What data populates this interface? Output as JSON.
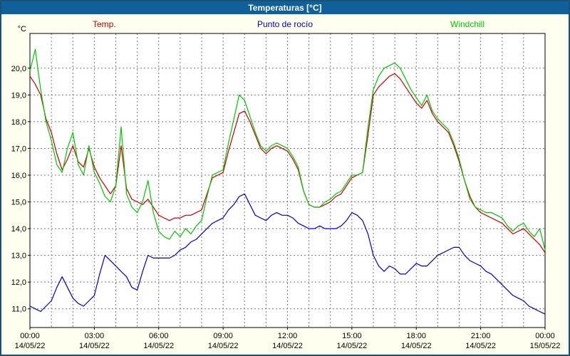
{
  "title": "Temperaturas [°C]",
  "colors": {
    "window_border": "#1a5276",
    "title_bar": "#10609a",
    "title_text": "#ffffff",
    "background": "#fffff0",
    "plot_bg": "#ffffff",
    "grid": "#777777",
    "axis_text": "#000000"
  },
  "chart_data": {
    "type": "line",
    "title": "Temperaturas [°C]",
    "y_unit": "°C",
    "grid": "dashed",
    "legend_position": "top",
    "xlim": [
      0,
      24
    ],
    "ylim": [
      10.3,
      21.3
    ],
    "x_minor_step": 1,
    "y_ticks": [
      {
        "value": 11,
        "label": "11,0"
      },
      {
        "value": 12,
        "label": "12,0"
      },
      {
        "value": 13,
        "label": "13,0"
      },
      {
        "value": 14,
        "label": "14,0"
      },
      {
        "value": 15,
        "label": "15,0"
      },
      {
        "value": 16,
        "label": "16,0"
      },
      {
        "value": 17,
        "label": "17,0"
      },
      {
        "value": 18,
        "label": "18,0"
      },
      {
        "value": 19,
        "label": "19,0"
      },
      {
        "value": 20,
        "label": "20,0"
      }
    ],
    "x_ticks": [
      {
        "hour": 0,
        "time": "00:00",
        "date": "14/05/22"
      },
      {
        "hour": 3,
        "time": "03:00",
        "date": "14/05/22"
      },
      {
        "hour": 6,
        "time": "06:00",
        "date": "14/05/22"
      },
      {
        "hour": 9,
        "time": "09:00",
        "date": "14/05/22"
      },
      {
        "hour": 12,
        "time": "12:00",
        "date": "14/05/22"
      },
      {
        "hour": 15,
        "time": "15:00",
        "date": "14/05/22"
      },
      {
        "hour": 18,
        "time": "18:00",
        "date": "14/05/22"
      },
      {
        "hour": 21,
        "time": "21:00",
        "date": "14/05/22"
      },
      {
        "hour": 24,
        "time": "00:00",
        "date": "15/05/22"
      }
    ],
    "series": [
      {
        "name": "Temp.",
        "color": "#cc0000",
        "points": [
          [
            0,
            19.7
          ],
          [
            0.25,
            19.4
          ],
          [
            0.5,
            19.0
          ],
          [
            0.75,
            18.1
          ],
          [
            1,
            17.6
          ],
          [
            1.25,
            16.8
          ],
          [
            1.5,
            16.2
          ],
          [
            1.75,
            16.6
          ],
          [
            2,
            17.1
          ],
          [
            2.25,
            16.5
          ],
          [
            2.5,
            16.3
          ],
          [
            2.75,
            17.0
          ],
          [
            3,
            16.3
          ],
          [
            3.25,
            15.9
          ],
          [
            3.5,
            15.6
          ],
          [
            3.75,
            15.3
          ],
          [
            4,
            15.6
          ],
          [
            4.25,
            17.1
          ],
          [
            4.5,
            15.5
          ],
          [
            4.75,
            15.1
          ],
          [
            5,
            15.0
          ],
          [
            5.25,
            14.9
          ],
          [
            5.5,
            15.1
          ],
          [
            5.75,
            14.8
          ],
          [
            6,
            14.5
          ],
          [
            6.25,
            14.4
          ],
          [
            6.5,
            14.3
          ],
          [
            6.75,
            14.4
          ],
          [
            7,
            14.4
          ],
          [
            7.25,
            14.5
          ],
          [
            7.5,
            14.5
          ],
          [
            7.75,
            14.6
          ],
          [
            8,
            14.7
          ],
          [
            8.25,
            15.3
          ],
          [
            8.5,
            15.9
          ],
          [
            8.75,
            16.0
          ],
          [
            9,
            16.1
          ],
          [
            9.25,
            16.9
          ],
          [
            9.5,
            17.6
          ],
          [
            9.75,
            18.3
          ],
          [
            10,
            18.4
          ],
          [
            10.25,
            18.0
          ],
          [
            10.5,
            17.5
          ],
          [
            10.75,
            17.0
          ],
          [
            11,
            16.8
          ],
          [
            11.25,
            17.0
          ],
          [
            11.5,
            17.1
          ],
          [
            11.75,
            17.0
          ],
          [
            12,
            16.9
          ],
          [
            12.25,
            16.6
          ],
          [
            12.5,
            16.2
          ],
          [
            12.75,
            15.4
          ],
          [
            13,
            14.9
          ],
          [
            13.25,
            14.8
          ],
          [
            13.5,
            14.8
          ],
          [
            13.75,
            14.9
          ],
          [
            14,
            15.0
          ],
          [
            14.25,
            15.2
          ],
          [
            14.5,
            15.3
          ],
          [
            14.75,
            15.6
          ],
          [
            15,
            15.9
          ],
          [
            15.25,
            16.0
          ],
          [
            15.5,
            16.1
          ],
          [
            15.75,
            17.5
          ],
          [
            16,
            19.0
          ],
          [
            16.25,
            19.3
          ],
          [
            16.5,
            19.5
          ],
          [
            16.75,
            19.7
          ],
          [
            17,
            19.8
          ],
          [
            17.25,
            19.6
          ],
          [
            17.5,
            19.3
          ],
          [
            17.75,
            19.0
          ],
          [
            18,
            18.7
          ],
          [
            18.25,
            18.5
          ],
          [
            18.5,
            18.8
          ],
          [
            18.75,
            18.3
          ],
          [
            19,
            18.0
          ],
          [
            19.25,
            17.8
          ],
          [
            19.5,
            17.6
          ],
          [
            19.75,
            17.1
          ],
          [
            20,
            16.5
          ],
          [
            20.25,
            15.8
          ],
          [
            20.5,
            15.2
          ],
          [
            20.75,
            14.8
          ],
          [
            21,
            14.6
          ],
          [
            21.25,
            14.5
          ],
          [
            21.5,
            14.4
          ],
          [
            21.75,
            14.3
          ],
          [
            22,
            14.2
          ],
          [
            22.25,
            14.0
          ],
          [
            22.5,
            13.8
          ],
          [
            22.75,
            13.9
          ],
          [
            23,
            14.0
          ],
          [
            23.25,
            13.8
          ],
          [
            23.5,
            13.6
          ],
          [
            23.75,
            13.4
          ],
          [
            24,
            13.1
          ]
        ]
      },
      {
        "name": "Punto de rocío",
        "color": "#0000c8",
        "points": [
          [
            0,
            11.1
          ],
          [
            0.25,
            11.0
          ],
          [
            0.5,
            10.9
          ],
          [
            0.75,
            11.1
          ],
          [
            1,
            11.3
          ],
          [
            1.25,
            11.8
          ],
          [
            1.5,
            12.2
          ],
          [
            1.75,
            11.8
          ],
          [
            2,
            11.4
          ],
          [
            2.25,
            11.2
          ],
          [
            2.5,
            11.1
          ],
          [
            2.75,
            11.3
          ],
          [
            3,
            11.5
          ],
          [
            3.25,
            12.3
          ],
          [
            3.5,
            13.0
          ],
          [
            3.75,
            12.8
          ],
          [
            4,
            12.6
          ],
          [
            4.25,
            12.4
          ],
          [
            4.5,
            12.2
          ],
          [
            4.75,
            11.8
          ],
          [
            5,
            11.7
          ],
          [
            5.25,
            12.4
          ],
          [
            5.5,
            13.0
          ],
          [
            5.75,
            12.9
          ],
          [
            6,
            12.9
          ],
          [
            6.25,
            12.9
          ],
          [
            6.5,
            12.9
          ],
          [
            6.75,
            13.0
          ],
          [
            7,
            13.2
          ],
          [
            7.25,
            13.3
          ],
          [
            7.5,
            13.5
          ],
          [
            7.75,
            13.6
          ],
          [
            8,
            13.8
          ],
          [
            8.25,
            14.0
          ],
          [
            8.5,
            14.2
          ],
          [
            8.75,
            14.3
          ],
          [
            9,
            14.4
          ],
          [
            9.25,
            14.7
          ],
          [
            9.5,
            14.9
          ],
          [
            9.75,
            15.2
          ],
          [
            10,
            15.3
          ],
          [
            10.25,
            14.9
          ],
          [
            10.5,
            14.5
          ],
          [
            10.75,
            14.4
          ],
          [
            11,
            14.3
          ],
          [
            11.25,
            14.5
          ],
          [
            11.5,
            14.6
          ],
          [
            11.75,
            14.5
          ],
          [
            12,
            14.5
          ],
          [
            12.25,
            14.4
          ],
          [
            12.5,
            14.2
          ],
          [
            12.75,
            14.1
          ],
          [
            13,
            14.0
          ],
          [
            13.25,
            14.0
          ],
          [
            13.5,
            14.1
          ],
          [
            13.75,
            14.0
          ],
          [
            14,
            14.0
          ],
          [
            14.25,
            14.0
          ],
          [
            14.5,
            14.1
          ],
          [
            14.75,
            14.3
          ],
          [
            15,
            14.6
          ],
          [
            15.25,
            14.5
          ],
          [
            15.5,
            14.3
          ],
          [
            15.75,
            13.8
          ],
          [
            16,
            13.0
          ],
          [
            16.25,
            12.6
          ],
          [
            16.5,
            12.4
          ],
          [
            16.75,
            12.6
          ],
          [
            17,
            12.5
          ],
          [
            17.25,
            12.3
          ],
          [
            17.5,
            12.3
          ],
          [
            17.75,
            12.5
          ],
          [
            18,
            12.7
          ],
          [
            18.25,
            12.6
          ],
          [
            18.5,
            12.6
          ],
          [
            18.75,
            12.8
          ],
          [
            19,
            13.0
          ],
          [
            19.25,
            13.1
          ],
          [
            19.5,
            13.2
          ],
          [
            19.75,
            13.3
          ],
          [
            20,
            13.3
          ],
          [
            20.25,
            13.0
          ],
          [
            20.5,
            12.8
          ],
          [
            20.75,
            12.7
          ],
          [
            21,
            12.6
          ],
          [
            21.25,
            12.4
          ],
          [
            21.5,
            12.3
          ],
          [
            21.75,
            12.1
          ],
          [
            22,
            11.9
          ],
          [
            22.25,
            11.7
          ],
          [
            22.5,
            11.5
          ],
          [
            22.75,
            11.4
          ],
          [
            23,
            11.3
          ],
          [
            23.25,
            11.1
          ],
          [
            23.5,
            11.0
          ],
          [
            23.75,
            10.9
          ],
          [
            24,
            10.8
          ]
        ]
      },
      {
        "name": "Windchill",
        "color": "#00c800",
        "points": [
          [
            0,
            19.9
          ],
          [
            0.25,
            20.7
          ],
          [
            0.5,
            19.2
          ],
          [
            0.75,
            18.0
          ],
          [
            1,
            17.3
          ],
          [
            1.25,
            16.4
          ],
          [
            1.5,
            16.1
          ],
          [
            1.75,
            17.0
          ],
          [
            2,
            17.6
          ],
          [
            2.25,
            16.4
          ],
          [
            2.5,
            16.0
          ],
          [
            2.75,
            17.1
          ],
          [
            3,
            16.1
          ],
          [
            3.25,
            15.7
          ],
          [
            3.5,
            15.2
          ],
          [
            3.75,
            15.0
          ],
          [
            4,
            15.6
          ],
          [
            4.25,
            17.8
          ],
          [
            4.5,
            15.3
          ],
          [
            4.75,
            14.8
          ],
          [
            5,
            14.6
          ],
          [
            5.25,
            15.0
          ],
          [
            5.5,
            15.8
          ],
          [
            5.75,
            14.6
          ],
          [
            6,
            13.9
          ],
          [
            6.25,
            13.7
          ],
          [
            6.5,
            13.6
          ],
          [
            6.75,
            13.9
          ],
          [
            7,
            13.7
          ],
          [
            7.25,
            14.0
          ],
          [
            7.5,
            13.8
          ],
          [
            7.75,
            14.1
          ],
          [
            8,
            14.3
          ],
          [
            8.25,
            15.2
          ],
          [
            8.5,
            16.0
          ],
          [
            8.75,
            16.1
          ],
          [
            9,
            16.2
          ],
          [
            9.25,
            17.2
          ],
          [
            9.5,
            18.1
          ],
          [
            9.75,
            19.0
          ],
          [
            10,
            18.8
          ],
          [
            10.25,
            18.2
          ],
          [
            10.5,
            17.6
          ],
          [
            10.75,
            17.1
          ],
          [
            11,
            16.9
          ],
          [
            11.25,
            17.1
          ],
          [
            11.5,
            17.2
          ],
          [
            11.75,
            17.1
          ],
          [
            12,
            17.0
          ],
          [
            12.25,
            16.7
          ],
          [
            12.5,
            16.3
          ],
          [
            12.75,
            15.4
          ],
          [
            13,
            14.9
          ],
          [
            13.25,
            14.8
          ],
          [
            13.5,
            14.8
          ],
          [
            13.75,
            15.0
          ],
          [
            14,
            15.1
          ],
          [
            14.25,
            15.3
          ],
          [
            14.5,
            15.4
          ],
          [
            14.75,
            15.7
          ],
          [
            15,
            16.0
          ],
          [
            15.25,
            16.0
          ],
          [
            15.5,
            16.1
          ],
          [
            15.75,
            17.8
          ],
          [
            16,
            19.2
          ],
          [
            16.25,
            19.7
          ],
          [
            16.5,
            20.0
          ],
          [
            16.75,
            20.1
          ],
          [
            17,
            20.2
          ],
          [
            17.25,
            20.0
          ],
          [
            17.5,
            19.6
          ],
          [
            17.75,
            19.2
          ],
          [
            18,
            18.9
          ],
          [
            18.25,
            18.6
          ],
          [
            18.5,
            19.0
          ],
          [
            18.75,
            18.4
          ],
          [
            19,
            18.1
          ],
          [
            19.25,
            17.9
          ],
          [
            19.5,
            17.7
          ],
          [
            19.75,
            17.2
          ],
          [
            20,
            16.6
          ],
          [
            20.25,
            15.8
          ],
          [
            20.5,
            15.1
          ],
          [
            20.75,
            14.8
          ],
          [
            21,
            14.7
          ],
          [
            21.25,
            14.6
          ],
          [
            21.5,
            14.6
          ],
          [
            21.75,
            14.5
          ],
          [
            22,
            14.4
          ],
          [
            22.25,
            14.1
          ],
          [
            22.5,
            13.9
          ],
          [
            22.75,
            14.1
          ],
          [
            23,
            14.2
          ],
          [
            23.25,
            13.9
          ],
          [
            23.5,
            13.7
          ],
          [
            23.75,
            14.0
          ],
          [
            24,
            13.2
          ]
        ]
      }
    ]
  }
}
